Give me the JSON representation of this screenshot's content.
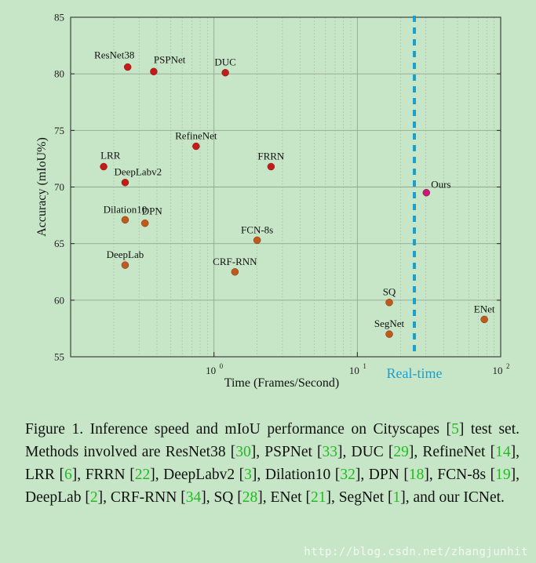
{
  "chart_data": {
    "type": "scatter",
    "xscale": "log",
    "xlim": [
      0.1,
      100
    ],
    "ylim": [
      55,
      85
    ],
    "xlabel": "Time (Frames/Second)",
    "ylabel": "Accuracy (mIoU%)",
    "xticks": [
      {
        "value": 1,
        "base": "10",
        "exp": "0"
      },
      {
        "value": 10,
        "base": "10",
        "exp": "1"
      },
      {
        "value": 100,
        "base": "10",
        "exp": "2"
      }
    ],
    "yticks": [
      "55",
      "60",
      "65",
      "70",
      "75",
      "80",
      "85"
    ],
    "realtime": {
      "fps": 25,
      "label": "Real-time",
      "color": "#1a9fd0"
    },
    "colors": {
      "high": "#c41a1a",
      "low": "#c05a1a",
      "ours": "#c8197a"
    },
    "points": [
      {
        "name": "ResNet38",
        "fps": 0.25,
        "miou": 80.6,
        "group": "high",
        "label_pos": "upper-left"
      },
      {
        "name": "PSPNet",
        "fps": 0.38,
        "miou": 80.2,
        "group": "high",
        "label_pos": "upper-right"
      },
      {
        "name": "DUC",
        "fps": 1.2,
        "miou": 80.1,
        "group": "high",
        "label_pos": "above"
      },
      {
        "name": "RefineNet",
        "fps": 0.75,
        "miou": 73.6,
        "group": "high",
        "label_pos": "above"
      },
      {
        "name": "LRR",
        "fps": 0.17,
        "miou": 71.8,
        "group": "high",
        "label_pos": "upper-right"
      },
      {
        "name": "FRRN",
        "fps": 2.5,
        "miou": 71.8,
        "group": "high",
        "label_pos": "above"
      },
      {
        "name": "DeepLabv2",
        "fps": 0.24,
        "miou": 70.4,
        "group": "high",
        "label_pos": "upper-right"
      },
      {
        "name": "Dilation10",
        "fps": 0.24,
        "miou": 67.1,
        "group": "low",
        "label_pos": "above"
      },
      {
        "name": "DPN",
        "fps": 0.33,
        "miou": 66.8,
        "group": "low",
        "label_pos": "upper-right"
      },
      {
        "name": "FCN-8s",
        "fps": 2.0,
        "miou": 65.3,
        "group": "low",
        "label_pos": "above"
      },
      {
        "name": "DeepLab",
        "fps": 0.24,
        "miou": 63.1,
        "group": "low",
        "label_pos": "above"
      },
      {
        "name": "CRF-RNN",
        "fps": 1.4,
        "miou": 62.5,
        "group": "low",
        "label_pos": "above"
      },
      {
        "name": "SQ",
        "fps": 16.7,
        "miou": 59.8,
        "group": "low",
        "label_pos": "above"
      },
      {
        "name": "SegNet",
        "fps": 16.7,
        "miou": 57.0,
        "group": "low",
        "label_pos": "above"
      },
      {
        "name": "ENet",
        "fps": 76.9,
        "miou": 58.3,
        "group": "low",
        "label_pos": "above"
      },
      {
        "name": "Ours",
        "fps": 30.3,
        "miou": 69.5,
        "group": "ours",
        "label_pos": "upper-right"
      }
    ]
  },
  "caption": {
    "parts": [
      {
        "t": "Figure 1. Inference speed and mIoU performance on Cityscapes ["
      },
      {
        "t": "5",
        "cite": true
      },
      {
        "t": "] test set.  Methods involved are ResNet38 ["
      },
      {
        "t": "30",
        "cite": true
      },
      {
        "t": "], PSPNet ["
      },
      {
        "t": "33",
        "cite": true
      },
      {
        "t": "], DUC ["
      },
      {
        "t": "29",
        "cite": true
      },
      {
        "t": "], RefineNet ["
      },
      {
        "t": "14",
        "cite": true
      },
      {
        "t": "], LRR ["
      },
      {
        "t": "6",
        "cite": true
      },
      {
        "t": "], FRRN ["
      },
      {
        "t": "22",
        "cite": true
      },
      {
        "t": "], DeepLabv2 ["
      },
      {
        "t": "3",
        "cite": true
      },
      {
        "t": "], Dilation10 ["
      },
      {
        "t": "32",
        "cite": true
      },
      {
        "t": "], DPN ["
      },
      {
        "t": "18",
        "cite": true
      },
      {
        "t": "], FCN-8s ["
      },
      {
        "t": "19",
        "cite": true
      },
      {
        "t": "], DeepLab ["
      },
      {
        "t": "2",
        "cite": true
      },
      {
        "t": "], CRF-RNN ["
      },
      {
        "t": "34",
        "cite": true
      },
      {
        "t": "], SQ ["
      },
      {
        "t": "28",
        "cite": true
      },
      {
        "t": "], ENet ["
      },
      {
        "t": "21",
        "cite": true
      },
      {
        "t": "], SegNet ["
      },
      {
        "t": "1",
        "cite": true
      },
      {
        "t": "], and our ICNet."
      }
    ]
  },
  "watermark": "http://blog.csdn.net/zhangjunhit"
}
